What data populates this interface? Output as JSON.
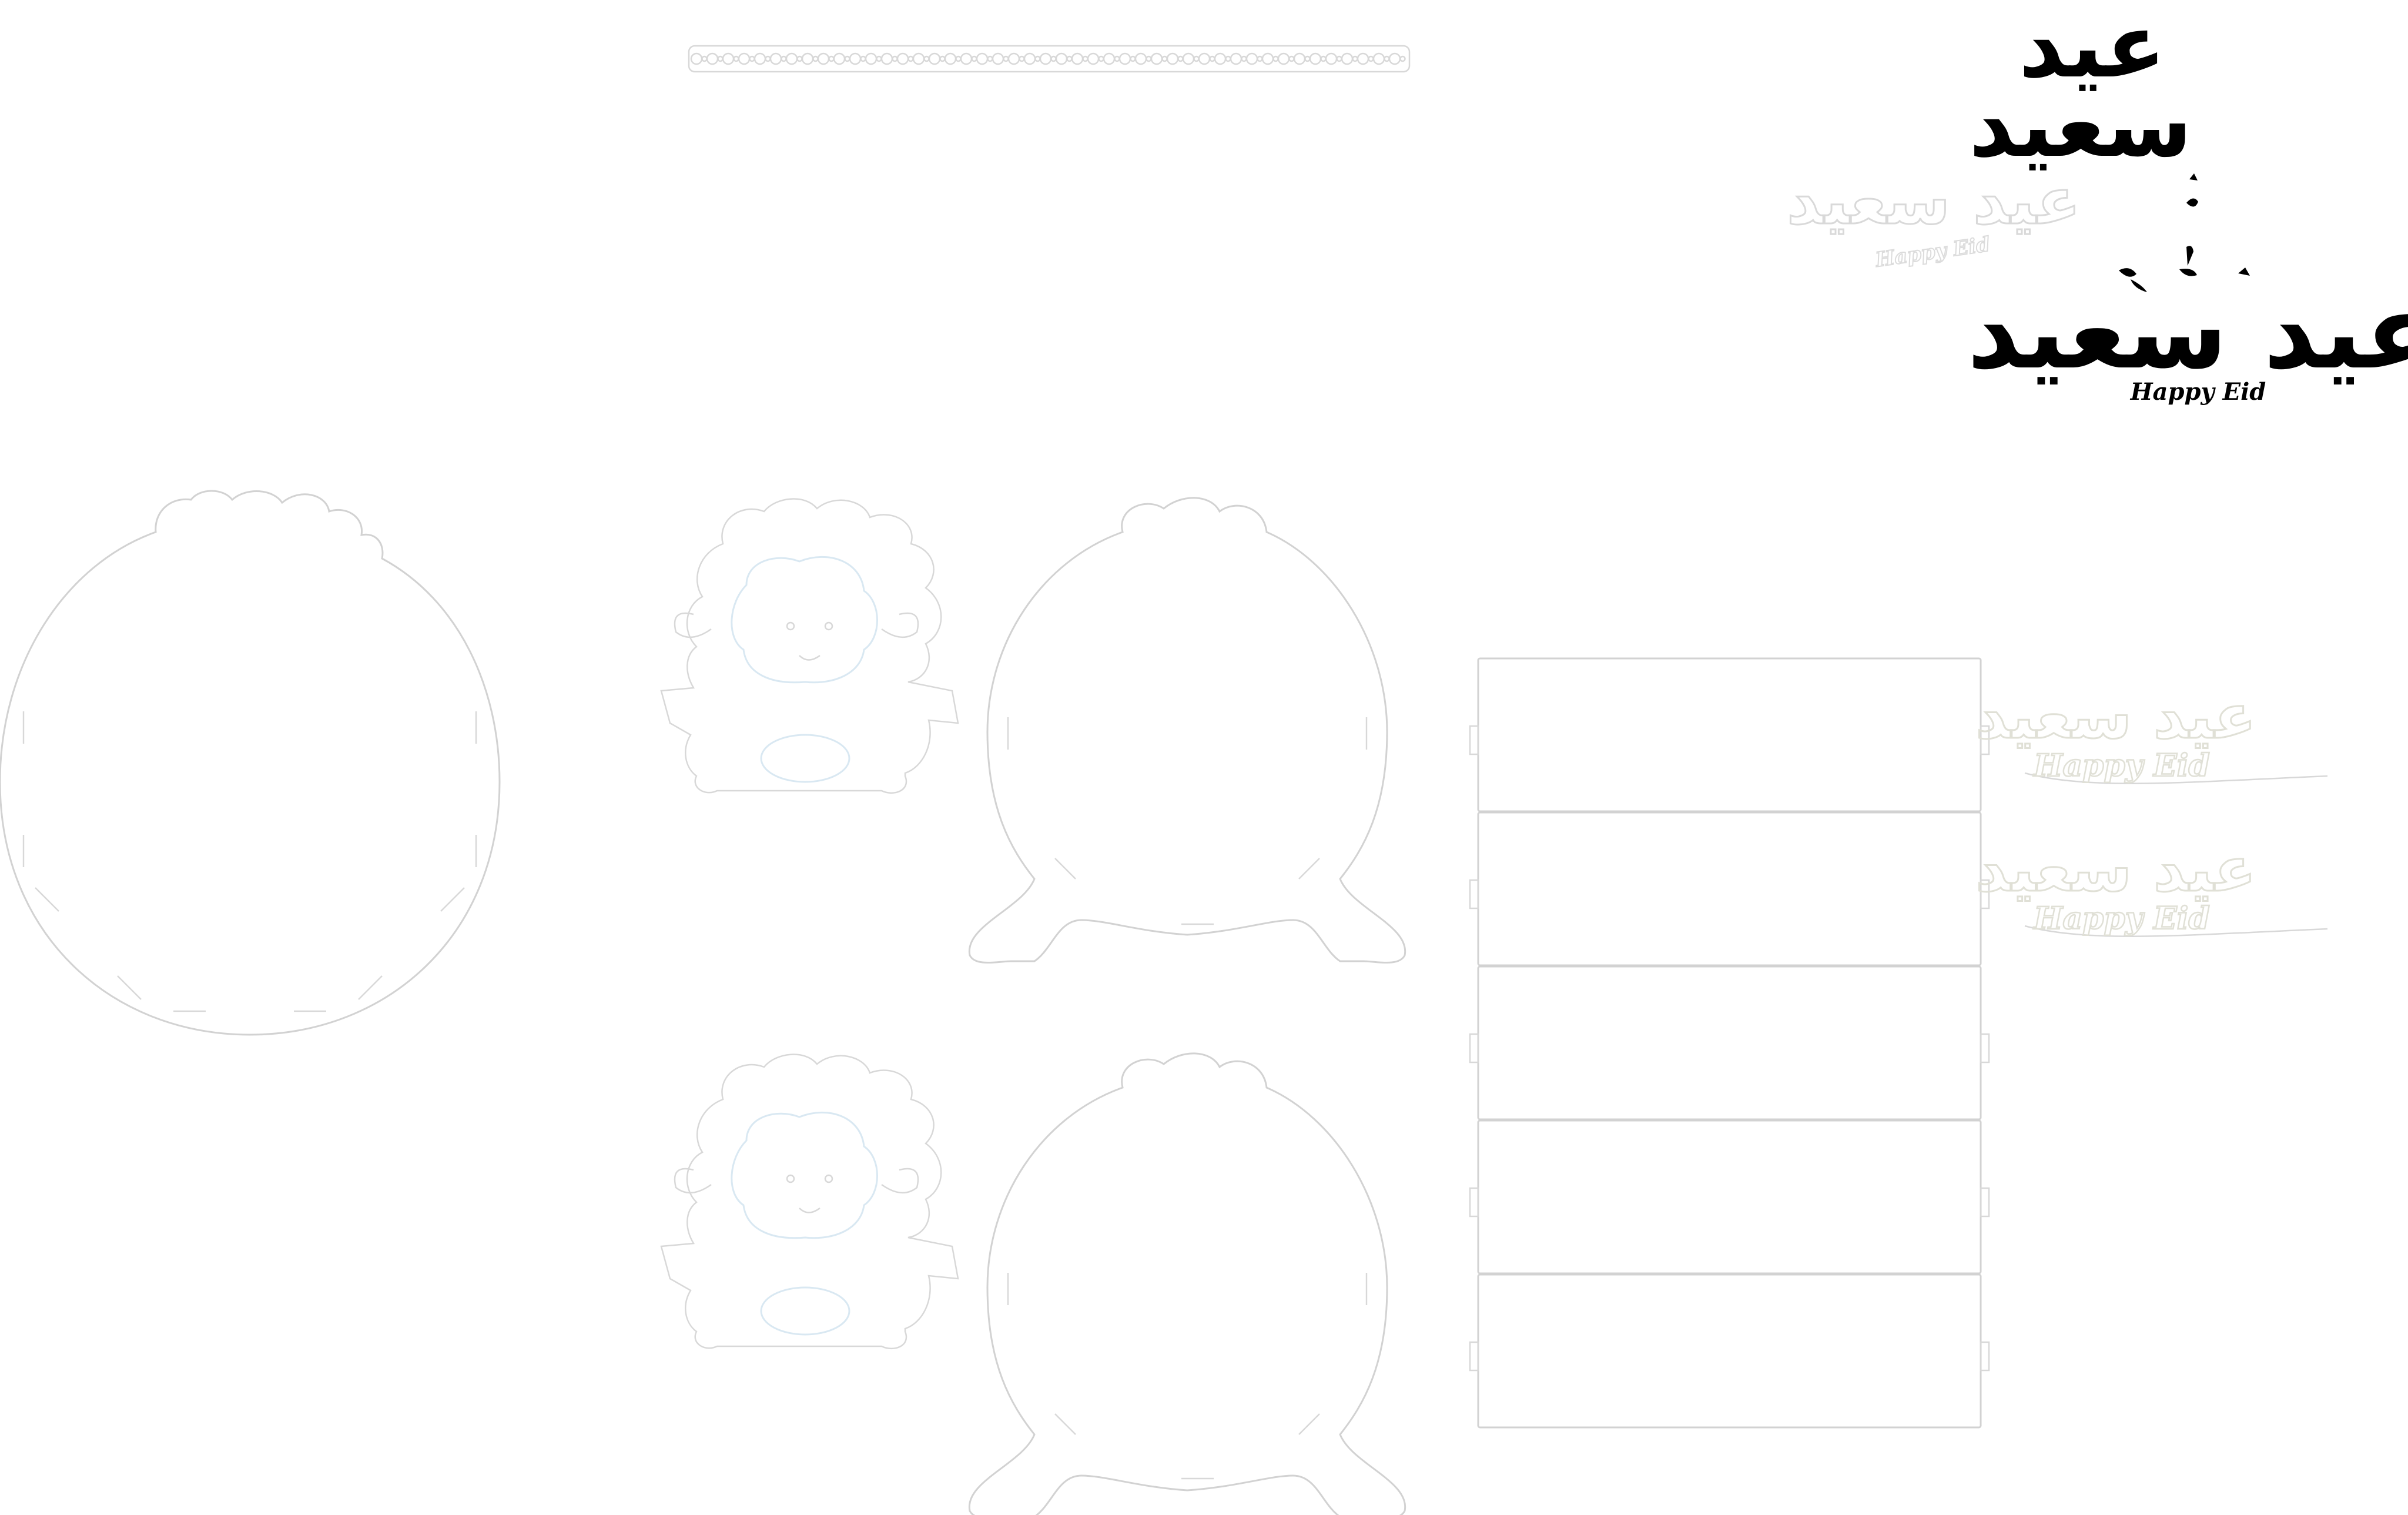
{
  "texts": {
    "eid_arabic_top_line1": "عيد",
    "eid_arabic_top_line2": "سعيد",
    "eid_arabic_wide": "عيد سعيد",
    "happy_eid": "Happy Eid",
    "ghost_eid_arabic": "عيد سعيد",
    "ghost_happy_eid": "Happy Eid",
    "plaque_eid_arabic": "عيد سعيد",
    "plaque_happy_eid": "Happy Eid"
  },
  "colors": {
    "cut_line": "#d2d2d2",
    "engrave_line": "#d9e8f2",
    "ink": "#000000",
    "background": "#ffffff"
  },
  "parts": {
    "lace_strip_count": 1,
    "large_circle_count": 1,
    "sheep_cutout_count": 2,
    "sheep_body_count": 2,
    "side_panel_count": 5,
    "eid_plaque_count": 2
  }
}
